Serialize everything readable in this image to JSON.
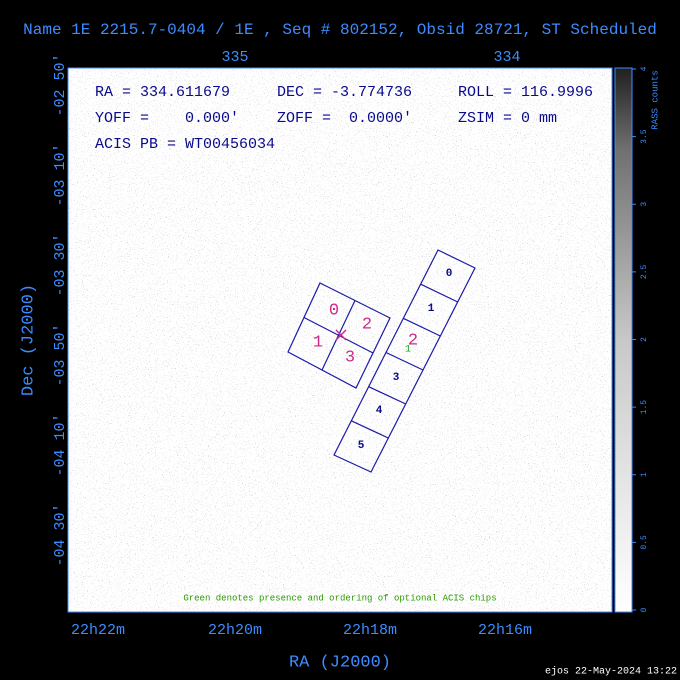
{
  "header": {
    "title": "Name 1E 2215.7-0404 / 1E , Seq # 802152, Obsid 28721, ST Scheduled"
  },
  "axes": {
    "top_ticks": [
      "335",
      "334"
    ],
    "left_ticks": [
      "-02 50'",
      "-03 10'",
      "-03 30'",
      "-03 50'",
      "-04 10'",
      "-04 30'"
    ],
    "bottom_ticks": [
      "22h22m",
      "22h20m",
      "22h18m",
      "22h16m"
    ],
    "x_label": "RA (J2000)",
    "y_label": "Dec (J2000)"
  },
  "colorbar": {
    "label": "RASS counts",
    "ticks": [
      "0",
      "0.5",
      "1",
      "1.5",
      "2",
      "2.5",
      "3",
      "3.5",
      "4"
    ]
  },
  "info": {
    "rows": [
      [
        "RA = 334.611679",
        "DEC = -3.774736",
        "ROLL = 116.9996"
      ],
      [
        "YOFF =    0.000'",
        "ZOFF =  0.0000'",
        "ZSIM = 0 mm"
      ],
      [
        "ACIS PB = WT00456034"
      ]
    ]
  },
  "chips": {
    "acis_i": [
      "0",
      "2",
      "1",
      "3"
    ],
    "acis_s": [
      "0",
      "1",
      "2",
      "3",
      "4",
      "5"
    ],
    "optional": "1"
  },
  "note": "Green denotes presence and ordering of optional ACIS chips",
  "footer": "ejos 22-May-2024 13:22"
}
